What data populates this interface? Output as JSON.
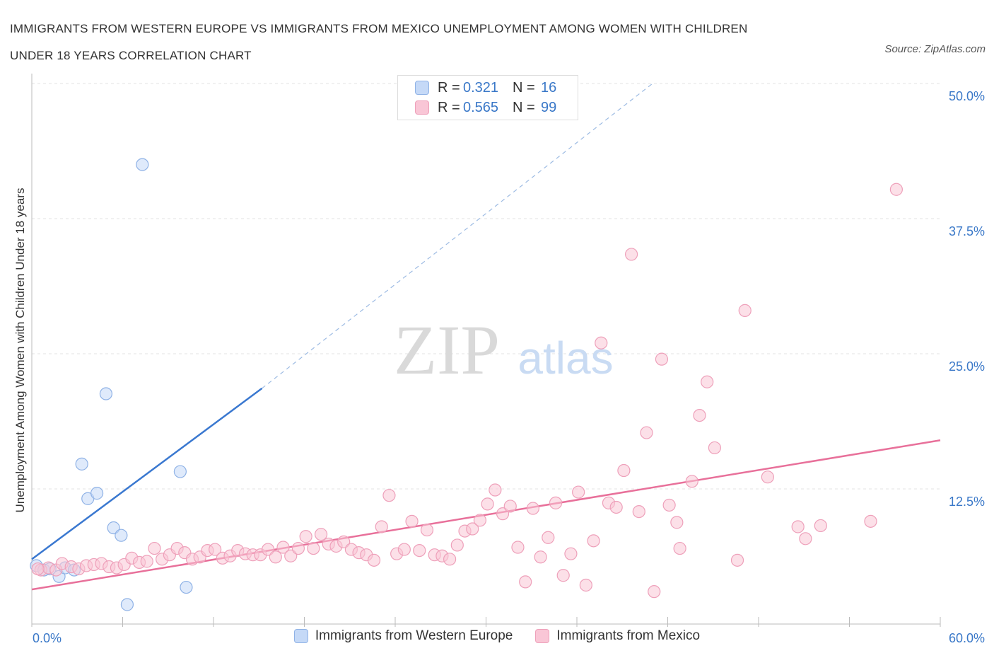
{
  "title": {
    "line1": "IMMIGRANTS FROM WESTERN EUROPE VS IMMIGRANTS FROM MEXICO UNEMPLOYMENT AMONG WOMEN WITH CHILDREN",
    "line2": "UNDER 18 YEARS CORRELATION CHART"
  },
  "source": "Source: ZipAtlas.com",
  "watermark": {
    "zip": "ZIP",
    "atlas": "atlas"
  },
  "stats": {
    "blue": {
      "r_label": "R =",
      "r_value": "0.321",
      "n_label": "N =",
      "n_value": "16"
    },
    "pink": {
      "r_label": "R =",
      "r_value": "0.565",
      "n_label": "N =",
      "n_value": "99"
    }
  },
  "legend": {
    "blue": "Immigrants from Western Europe",
    "pink": "Immigrants from Mexico"
  },
  "colors": {
    "blue_fill": "#c5d9f7",
    "blue_stroke": "#8fb2e6",
    "blue_line": "#3a78d0",
    "pink_fill": "#f9c6d6",
    "pink_stroke": "#eea0ba",
    "pink_line": "#e8709a",
    "tick_text": "#3a78c8",
    "grid": "#e3e3e3"
  },
  "chart_data": {
    "type": "scatter",
    "xlabel": "",
    "ylabel": "Unemployment Among Women with Children Under 18 years",
    "xlim": [
      0,
      60
    ],
    "ylim": [
      0,
      50
    ],
    "x_tick_labels": [
      {
        "value": 0,
        "label": "0.0%"
      },
      {
        "value": 60,
        "label": "60.0%"
      }
    ],
    "y_tick_labels": [
      {
        "value": 12.5,
        "label": "12.5%"
      },
      {
        "value": 25,
        "label": "25.0%"
      },
      {
        "value": 37.5,
        "label": "37.5%"
      },
      {
        "value": 50,
        "label": "50.0%"
      }
    ],
    "grid": true,
    "series": [
      {
        "name": "Immigrants from Western Europe",
        "color": "blue",
        "points": [
          [
            0.3,
            5.4
          ],
          [
            0.8,
            5.0
          ],
          [
            1.2,
            5.1
          ],
          [
            1.8,
            4.4
          ],
          [
            2.2,
            5.2
          ],
          [
            2.8,
            5.0
          ],
          [
            3.3,
            14.8
          ],
          [
            3.7,
            11.6
          ],
          [
            4.3,
            12.1
          ],
          [
            4.9,
            21.3
          ],
          [
            5.4,
            8.9
          ],
          [
            5.9,
            8.2
          ],
          [
            6.3,
            1.8
          ],
          [
            7.3,
            42.5
          ],
          [
            9.8,
            14.1
          ],
          [
            10.2,
            3.4
          ]
        ],
        "trend": {
          "x": [
            0,
            15.2
          ],
          "y": [
            6.0,
            21.8
          ],
          "dashed_to": {
            "x": 41,
            "y": 50
          }
        }
      },
      {
        "name": "Immigrants from Mexico",
        "color": "pink",
        "points": [
          [
            0.6,
            5.0
          ],
          [
            1.1,
            5.2
          ],
          [
            1.6,
            5.0
          ],
          [
            2.0,
            5.6
          ],
          [
            2.6,
            5.3
          ],
          [
            3.1,
            5.1
          ],
          [
            3.6,
            5.4
          ],
          [
            4.1,
            5.5
          ],
          [
            4.6,
            5.6
          ],
          [
            5.1,
            5.3
          ],
          [
            5.6,
            5.2
          ],
          [
            6.1,
            5.5
          ],
          [
            6.6,
            6.1
          ],
          [
            7.1,
            5.7
          ],
          [
            7.6,
            5.8
          ],
          [
            8.1,
            7.0
          ],
          [
            8.6,
            6.0
          ],
          [
            9.1,
            6.4
          ],
          [
            9.6,
            7.0
          ],
          [
            10.1,
            6.6
          ],
          [
            10.6,
            6.0
          ],
          [
            11.1,
            6.2
          ],
          [
            11.6,
            6.8
          ],
          [
            12.1,
            6.9
          ],
          [
            12.6,
            6.1
          ],
          [
            13.1,
            6.3
          ],
          [
            13.6,
            6.8
          ],
          [
            14.1,
            6.5
          ],
          [
            14.6,
            6.4
          ],
          [
            15.1,
            6.4
          ],
          [
            15.6,
            6.9
          ],
          [
            16.1,
            6.2
          ],
          [
            16.6,
            7.1
          ],
          [
            17.1,
            6.3
          ],
          [
            17.6,
            7.0
          ],
          [
            18.1,
            8.1
          ],
          [
            18.6,
            7.0
          ],
          [
            19.1,
            8.3
          ],
          [
            19.6,
            7.4
          ],
          [
            20.1,
            7.2
          ],
          [
            20.6,
            7.6
          ],
          [
            21.1,
            6.9
          ],
          [
            21.6,
            6.6
          ],
          [
            22.1,
            6.4
          ],
          [
            22.6,
            5.9
          ],
          [
            23.1,
            9.0
          ],
          [
            23.6,
            11.9
          ],
          [
            24.1,
            6.5
          ],
          [
            24.6,
            6.9
          ],
          [
            25.1,
            9.5
          ],
          [
            25.6,
            6.8
          ],
          [
            26.1,
            8.7
          ],
          [
            26.6,
            6.4
          ],
          [
            27.1,
            6.3
          ],
          [
            27.6,
            6.0
          ],
          [
            28.1,
            7.3
          ],
          [
            28.6,
            8.6
          ],
          [
            29.1,
            8.8
          ],
          [
            29.6,
            9.6
          ],
          [
            30.1,
            11.1
          ],
          [
            30.6,
            12.4
          ],
          [
            31.1,
            10.2
          ],
          [
            31.6,
            10.9
          ],
          [
            32.1,
            7.1
          ],
          [
            32.6,
            3.9
          ],
          [
            33.1,
            10.7
          ],
          [
            33.6,
            6.2
          ],
          [
            34.1,
            8.0
          ],
          [
            34.6,
            11.2
          ],
          [
            35.1,
            4.5
          ],
          [
            35.6,
            6.5
          ],
          [
            36.1,
            12.2
          ],
          [
            36.6,
            3.6
          ],
          [
            37.1,
            7.7
          ],
          [
            37.6,
            26.0
          ],
          [
            38.1,
            11.2
          ],
          [
            38.6,
            10.8
          ],
          [
            39.1,
            14.2
          ],
          [
            39.6,
            34.2
          ],
          [
            40.1,
            10.4
          ],
          [
            40.6,
            17.7
          ],
          [
            41.1,
            3.0
          ],
          [
            41.6,
            24.5
          ],
          [
            42.1,
            11.0
          ],
          [
            42.6,
            9.4
          ],
          [
            42.8,
            7.0
          ],
          [
            43.6,
            13.2
          ],
          [
            44.1,
            19.3
          ],
          [
            44.6,
            22.4
          ],
          [
            45.1,
            16.3
          ],
          [
            46.6,
            5.9
          ],
          [
            47.1,
            29.0
          ],
          [
            48.6,
            13.6
          ],
          [
            50.6,
            9.0
          ],
          [
            51.1,
            7.9
          ],
          [
            52.1,
            9.1
          ],
          [
            55.4,
            9.5
          ],
          [
            57.1,
            40.2
          ],
          [
            0.4,
            5.1
          ]
        ],
        "trend": {
          "x": [
            0,
            60
          ],
          "y": [
            3.2,
            17.0
          ]
        }
      }
    ]
  }
}
